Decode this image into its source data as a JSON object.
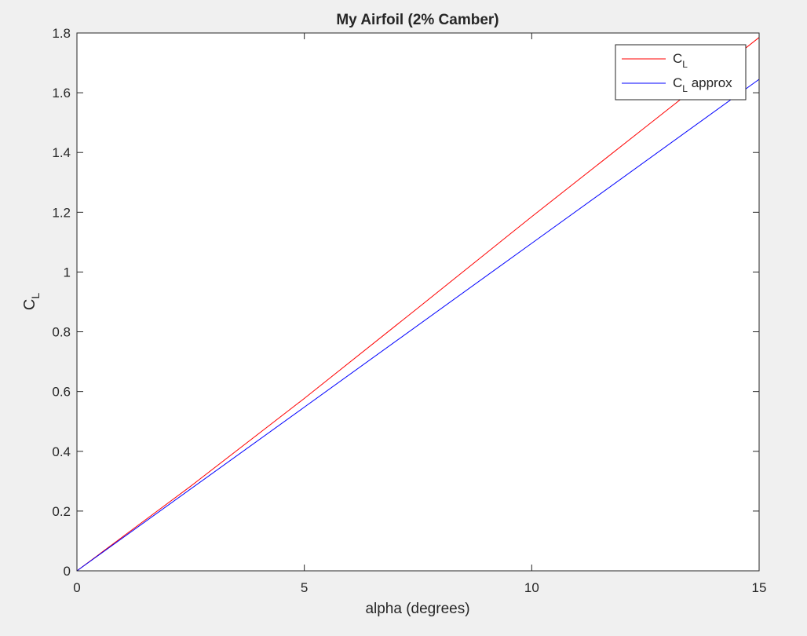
{
  "chart_data": {
    "type": "line",
    "title": "My Airfoil (2% Camber)",
    "xlabel": "alpha (degrees)",
    "ylabel": "C_L",
    "xlim": [
      0,
      15
    ],
    "ylim": [
      0,
      1.8
    ],
    "xticks": [
      0,
      5,
      10,
      15
    ],
    "yticks": [
      0,
      0.2,
      0.4,
      0.6,
      0.8,
      1,
      1.2,
      1.4,
      1.6,
      1.8
    ],
    "x_tick_labels": [
      "0",
      "5",
      "10",
      "15"
    ],
    "y_tick_labels": [
      "0",
      "0.2",
      "0.4",
      "0.6",
      "0.8",
      "1",
      "1.2",
      "1.4",
      "1.6",
      "1.8"
    ],
    "grid": false,
    "legend_position": "top-right",
    "series": [
      {
        "name": "C_L",
        "color": "#ff0000",
        "x": [
          0,
          2.5,
          5,
          7.5,
          10,
          12.5,
          15
        ],
        "y": [
          0,
          0.283,
          0.577,
          0.88,
          1.185,
          1.485,
          1.785
        ]
      },
      {
        "name": "C_L approx",
        "color": "#0000ff",
        "x": [
          0,
          5,
          10,
          15
        ],
        "y": [
          0,
          0.548,
          1.096,
          1.645
        ]
      }
    ]
  }
}
